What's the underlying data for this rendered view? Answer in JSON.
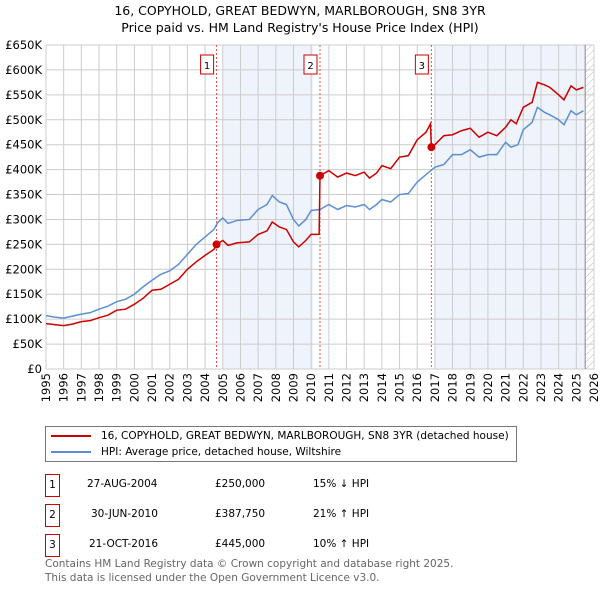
{
  "chart_data": {
    "type": "line",
    "title": "16, COPYHOLD, GREAT BEDWYN, MARLBOROUGH, SN8 3YR",
    "subtitle": "Price paid vs. HM Land Registry's House Price Index (HPI)",
    "xlim": [
      1995,
      2026
    ],
    "ylim": [
      0,
      650000
    ],
    "y_ticks": [
      {
        "v": 0,
        "l": "£0"
      },
      {
        "v": 50000,
        "l": "£50K"
      },
      {
        "v": 100000,
        "l": "£100K"
      },
      {
        "v": 150000,
        "l": "£150K"
      },
      {
        "v": 200000,
        "l": "£200K"
      },
      {
        "v": 250000,
        "l": "£250K"
      },
      {
        "v": 300000,
        "l": "£300K"
      },
      {
        "v": 350000,
        "l": "£350K"
      },
      {
        "v": 400000,
        "l": "£400K"
      },
      {
        "v": 450000,
        "l": "£450K"
      },
      {
        "v": 500000,
        "l": "£500K"
      },
      {
        "v": 550000,
        "l": "£550K"
      },
      {
        "v": 600000,
        "l": "£600K"
      },
      {
        "v": 650000,
        "l": "£650K"
      }
    ],
    "x_ticks": [
      "1995",
      "1996",
      "1997",
      "1998",
      "1999",
      "2000",
      "2001",
      "2002",
      "2003",
      "2004",
      "2005",
      "2006",
      "2007",
      "2008",
      "2009",
      "2010",
      "2011",
      "2012",
      "2013",
      "2014",
      "2015",
      "2016",
      "2017",
      "2018",
      "2019",
      "2020",
      "2021",
      "2022",
      "2023",
      "2024",
      "2025",
      "2026"
    ],
    "grid": true,
    "shaded_ranges": [
      [
        2005,
        2010.1
      ],
      [
        2017,
        2025.5
      ]
    ],
    "hatched_from": 2025.5,
    "series": [
      {
        "name": "16, COPYHOLD, GREAT BEDWYN, MARLBOROUGH, SN8 3YR (detached house)",
        "color": "#cc0000",
        "x": [
          1995,
          1995.5,
          1996,
          1996.5,
          1997,
          1997.5,
          1998,
          1998.5,
          1999,
          1999.5,
          2000,
          2000.5,
          2001,
          2001.5,
          2002,
          2002.5,
          2003,
          2003.5,
          2004,
          2004.5,
          2004.65,
          2005,
          2005.3,
          2005.8,
          2006.5,
          2007,
          2007.5,
          2007.8,
          2008.2,
          2008.6,
          2009,
          2009.3,
          2009.7,
          2010,
          2010.45,
          2010.5,
          2011,
          2011.5,
          2012,
          2012.5,
          2013,
          2013.3,
          2013.7,
          2014,
          2014.5,
          2015,
          2015.5,
          2016,
          2016.5,
          2016.75,
          2016.8,
          2017,
          2017.5,
          2018,
          2018.5,
          2019,
          2019.5,
          2020,
          2020.5,
          2021,
          2021.3,
          2021.6,
          2022,
          2022.5,
          2022.8,
          2023.2,
          2023.5,
          2024,
          2024.3,
          2024.7,
          2025,
          2025.4
        ],
        "y": [
          91000,
          89000,
          87000,
          90000,
          95000,
          97000,
          103000,
          108000,
          118000,
          120000,
          130000,
          142000,
          158000,
          160000,
          170000,
          180000,
          200000,
          215000,
          228000,
          240000,
          250000,
          258000,
          248000,
          253000,
          255000,
          270000,
          277000,
          295000,
          285000,
          280000,
          255000,
          245000,
          258000,
          270000,
          270000,
          387750,
          398000,
          385000,
          393000,
          388000,
          395000,
          383000,
          393000,
          408000,
          402000,
          425000,
          428000,
          460000,
          475000,
          492000,
          445000,
          450000,
          468000,
          470000,
          478000,
          483000,
          465000,
          475000,
          468000,
          485000,
          500000,
          492000,
          525000,
          535000,
          575000,
          570000,
          565000,
          550000,
          540000,
          568000,
          560000,
          565000
        ]
      },
      {
        "name": "HPI: Average price, detached house, Wiltshire",
        "color": "#5b8fd4",
        "x": [
          1995,
          1995.5,
          1996,
          1996.5,
          1997,
          1997.5,
          1998,
          1998.5,
          1999,
          1999.5,
          2000,
          2000.5,
          2001,
          2001.5,
          2002,
          2002.5,
          2003,
          2003.5,
          2004,
          2004.5,
          2004.7,
          2005,
          2005.3,
          2005.8,
          2006.5,
          2007,
          2007.5,
          2007.8,
          2008.2,
          2008.6,
          2009,
          2009.3,
          2009.7,
          2010,
          2010.5,
          2011,
          2011.5,
          2012,
          2012.5,
          2013,
          2013.3,
          2013.7,
          2014,
          2014.5,
          2015,
          2015.5,
          2016,
          2016.5,
          2017,
          2017.5,
          2018,
          2018.5,
          2019,
          2019.5,
          2020,
          2020.5,
          2021,
          2021.3,
          2021.7,
          2022,
          2022.5,
          2022.8,
          2023.2,
          2023.5,
          2024,
          2024.3,
          2024.7,
          2025,
          2025.4
        ],
        "y": [
          107000,
          104000,
          102000,
          106000,
          110000,
          113000,
          120000,
          126000,
          135000,
          140000,
          150000,
          165000,
          178000,
          190000,
          197000,
          210000,
          230000,
          250000,
          265000,
          280000,
          293000,
          303000,
          292000,
          298000,
          300000,
          320000,
          330000,
          348000,
          335000,
          330000,
          300000,
          287000,
          300000,
          318000,
          320000,
          330000,
          320000,
          328000,
          325000,
          330000,
          320000,
          330000,
          340000,
          335000,
          350000,
          352000,
          375000,
          390000,
          405000,
          410000,
          430000,
          430000,
          440000,
          425000,
          430000,
          430000,
          455000,
          445000,
          450000,
          480000,
          495000,
          525000,
          515000,
          510000,
          500000,
          490000,
          518000,
          510000,
          518000
        ]
      }
    ],
    "markers": [
      {
        "label": "1",
        "x": 2004.65,
        "y": 250000
      },
      {
        "label": "2",
        "x": 2010.5,
        "y": 387750
      },
      {
        "label": "3",
        "x": 2016.8,
        "y": 445000
      }
    ]
  },
  "legend": {
    "red": "16, COPYHOLD, GREAT BEDWYN, MARLBOROUGH, SN8 3YR (detached house)",
    "blue": "HPI: Average price, detached house, Wiltshire"
  },
  "sales": [
    {
      "num": "1",
      "date": "27-AUG-2004",
      "price": "£250,000",
      "hpi": "15% ↓ HPI"
    },
    {
      "num": "2",
      "date": "30-JUN-2010",
      "price": "£387,750",
      "hpi": "21% ↑ HPI"
    },
    {
      "num": "3",
      "date": "21-OCT-2016",
      "price": "£445,000",
      "hpi": "10% ↑ HPI"
    }
  ],
  "footer": {
    "line1": "Contains HM Land Registry data © Crown copyright and database right 2025.",
    "line2": "This data is licensed under the Open Government Licence v3.0."
  }
}
